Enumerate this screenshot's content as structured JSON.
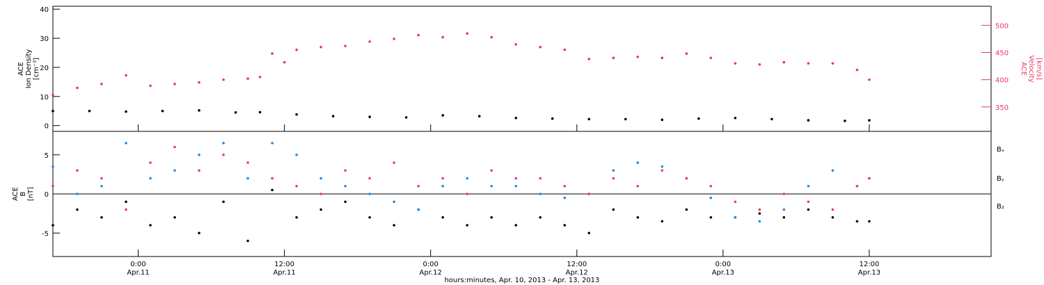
{
  "colors": {
    "black": "#000000",
    "blue": "#1e88e5",
    "red": "#e8385c"
  },
  "xaxis": {
    "label": "hours:minutes, Apr. 10, 2013 - Apr. 13, 2013",
    "ticks": [
      {
        "time": "2013-04-11T00:00",
        "line1": "0:00",
        "line2": "Apr.11"
      },
      {
        "time": "2013-04-11T12:00",
        "line1": "12:00",
        "line2": "Apr.11"
      },
      {
        "time": "2013-04-12T00:00",
        "line1": "0:00",
        "line2": "Apr.12"
      },
      {
        "time": "2013-04-12T12:00",
        "line1": "12:00",
        "line2": "Apr.12"
      },
      {
        "time": "2013-04-13T00:00",
        "line1": "0:00",
        "line2": "Apr.13"
      },
      {
        "time": "2013-04-13T12:00",
        "line1": "12:00",
        "line2": "Apr.13"
      }
    ]
  },
  "chart_data": [
    {
      "type": "scatter",
      "xlim": [
        "2013-04-10T17:00",
        "2013-04-13T22:00"
      ],
      "ylabel_left": [
        "ACE",
        "Ion Density",
        "[cm⁻³]"
      ],
      "ylim_left": [
        -2,
        41
      ],
      "yticks_left": [
        0,
        10,
        20,
        30,
        40
      ],
      "ylabel_right": [
        "ACE",
        "Velocity",
        "[km/s]"
      ],
      "ylim_right": [
        305,
        535
      ],
      "yticks_right": [
        350,
        400,
        450,
        500
      ],
      "series": [
        {
          "axis": "left",
          "color": "#000000",
          "x": [
            "2013-04-10T17:00",
            "2013-04-10T20:00",
            "2013-04-10T23:00",
            "2013-04-11T02:00",
            "2013-04-11T05:00",
            "2013-04-11T08:00",
            "2013-04-11T10:00",
            "2013-04-11T13:00",
            "2013-04-11T16:00",
            "2013-04-11T19:00",
            "2013-04-11T22:00",
            "2013-04-12T01:00",
            "2013-04-12T04:00",
            "2013-04-12T07:00",
            "2013-04-12T10:00",
            "2013-04-12T13:00",
            "2013-04-12T16:00",
            "2013-04-12T19:00",
            "2013-04-12T22:00",
            "2013-04-13T01:00",
            "2013-04-13T04:00",
            "2013-04-13T07:00",
            "2013-04-13T10:00",
            "2013-04-13T12:00"
          ],
          "y": [
            5,
            5,
            4.8,
            5,
            5.2,
            4.5,
            4.6,
            3.8,
            3.2,
            3.0,
            2.8,
            3.5,
            3.2,
            2.6,
            2.4,
            2.2,
            2.2,
            2.0,
            2.4,
            2.6,
            2.2,
            1.8,
            1.6,
            1.8
          ]
        },
        {
          "axis": "right",
          "color": "#e8385c",
          "x": [
            "2013-04-10T17:00",
            "2013-04-10T19:00",
            "2013-04-10T21:00",
            "2013-04-10T23:00",
            "2013-04-11T01:00",
            "2013-04-11T03:00",
            "2013-04-11T05:00",
            "2013-04-11T07:00",
            "2013-04-11T09:00",
            "2013-04-11T10:00",
            "2013-04-11T11:00",
            "2013-04-11T12:00",
            "2013-04-11T13:00",
            "2013-04-11T15:00",
            "2013-04-11T17:00",
            "2013-04-11T19:00",
            "2013-04-11T21:00",
            "2013-04-11T23:00",
            "2013-04-12T01:00",
            "2013-04-12T03:00",
            "2013-04-12T05:00",
            "2013-04-12T07:00",
            "2013-04-12T09:00",
            "2013-04-12T11:00",
            "2013-04-12T13:00",
            "2013-04-12T15:00",
            "2013-04-12T17:00",
            "2013-04-12T19:00",
            "2013-04-12T21:00",
            "2013-04-12T23:00",
            "2013-04-13T01:00",
            "2013-04-13T03:00",
            "2013-04-13T05:00",
            "2013-04-13T07:00",
            "2013-04-13T09:00",
            "2013-04-13T11:00",
            "2013-04-13T12:00"
          ],
          "y": [
            372,
            385,
            392,
            408,
            389,
            392,
            395,
            400,
            402,
            405,
            448,
            432,
            455,
            460,
            462,
            470,
            475,
            482,
            478,
            485,
            478,
            465,
            460,
            455,
            438,
            440,
            442,
            440,
            448,
            440,
            430,
            428,
            432,
            430,
            430,
            418,
            400
          ]
        }
      ]
    },
    {
      "type": "scatter",
      "xlim": [
        "2013-04-10T17:00",
        "2013-04-13T22:00"
      ],
      "ylabel_left": [
        "ACE",
        "B",
        "[nT]"
      ],
      "ylim_left": [
        -8,
        8
      ],
      "yticks_left": [
        -5,
        0,
        5
      ],
      "zero_line": true,
      "legend": [
        "Bₓ",
        "Bᵧ",
        "B₂"
      ],
      "legend_placement": "right",
      "series": [
        {
          "name": "Bₓ",
          "color": "#000000",
          "x": [
            "2013-04-10T17:00",
            "2013-04-10T19:00",
            "2013-04-10T21:00",
            "2013-04-10T23:00",
            "2013-04-11T01:00",
            "2013-04-11T03:00",
            "2013-04-11T05:00",
            "2013-04-11T07:00",
            "2013-04-11T09:00",
            "2013-04-11T11:00",
            "2013-04-11T13:00",
            "2013-04-11T15:00",
            "2013-04-11T17:00",
            "2013-04-11T19:00",
            "2013-04-11T21:00",
            "2013-04-11T23:00",
            "2013-04-12T01:00",
            "2013-04-12T03:00",
            "2013-04-12T05:00",
            "2013-04-12T07:00",
            "2013-04-12T09:00",
            "2013-04-12T11:00",
            "2013-04-12T13:00",
            "2013-04-12T15:00",
            "2013-04-12T17:00",
            "2013-04-12T19:00",
            "2013-04-12T21:00",
            "2013-04-12T23:00",
            "2013-04-13T01:00",
            "2013-04-13T03:00",
            "2013-04-13T05:00",
            "2013-04-13T07:00",
            "2013-04-13T09:00",
            "2013-04-13T11:00",
            "2013-04-13T12:00"
          ],
          "y": [
            -4,
            -2,
            -3,
            -1,
            -4,
            -3,
            -5,
            -1,
            -6,
            0.5,
            -3,
            -2,
            -1,
            -3,
            -4,
            -2,
            -3,
            -4,
            -3,
            -4,
            -3,
            -4,
            -5,
            -2,
            -3,
            -3.5,
            -2,
            -3,
            -3,
            -2.5,
            -3,
            -2,
            -3,
            -3.5,
            -3.5
          ]
        },
        {
          "name": "Bᵧ",
          "color": "#1e88e5",
          "x": [
            "2013-04-10T17:00",
            "2013-04-10T19:00",
            "2013-04-10T21:00",
            "2013-04-10T23:00",
            "2013-04-11T01:00",
            "2013-04-11T03:00",
            "2013-04-11T05:00",
            "2013-04-11T07:00",
            "2013-04-11T09:00",
            "2013-04-11T11:00",
            "2013-04-11T13:00",
            "2013-04-11T15:00",
            "2013-04-11T17:00",
            "2013-04-11T19:00",
            "2013-04-11T21:00",
            "2013-04-11T23:00",
            "2013-04-12T01:00",
            "2013-04-12T03:00",
            "2013-04-12T05:00",
            "2013-04-12T07:00",
            "2013-04-12T09:00",
            "2013-04-12T11:00",
            "2013-04-12T13:00",
            "2013-04-12T15:00",
            "2013-04-12T17:00",
            "2013-04-12T19:00",
            "2013-04-12T21:00",
            "2013-04-12T23:00",
            "2013-04-13T01:00",
            "2013-04-13T03:00",
            "2013-04-13T05:00",
            "2013-04-13T07:00",
            "2013-04-13T09:00",
            "2013-04-13T11:00",
            "2013-04-13T12:00"
          ],
          "y": [
            3.5,
            0,
            1,
            6.5,
            2,
            3,
            5,
            6.5,
            2,
            6.5,
            5,
            2,
            1,
            0,
            -1,
            -2,
            1,
            2,
            1,
            1,
            0,
            -0.5,
            0,
            3,
            4,
            3.5,
            2,
            -0.5,
            -3,
            -3.5,
            -2,
            1,
            3,
            1,
            2
          ]
        },
        {
          "name": "B₂",
          "color": "#e8385c",
          "x": [
            "2013-04-10T17:00",
            "2013-04-10T19:00",
            "2013-04-10T21:00",
            "2013-04-10T23:00",
            "2013-04-11T01:00",
            "2013-04-11T03:00",
            "2013-04-11T05:00",
            "2013-04-11T07:00",
            "2013-04-11T09:00",
            "2013-04-11T11:00",
            "2013-04-11T13:00",
            "2013-04-11T15:00",
            "2013-04-11T17:00",
            "2013-04-11T19:00",
            "2013-04-11T21:00",
            "2013-04-11T23:00",
            "2013-04-12T01:00",
            "2013-04-12T03:00",
            "2013-04-12T05:00",
            "2013-04-12T07:00",
            "2013-04-12T09:00",
            "2013-04-12T11:00",
            "2013-04-12T13:00",
            "2013-04-12T15:00",
            "2013-04-12T17:00",
            "2013-04-12T19:00",
            "2013-04-12T21:00",
            "2013-04-12T23:00",
            "2013-04-13T01:00",
            "2013-04-13T03:00",
            "2013-04-13T05:00",
            "2013-04-13T07:00",
            "2013-04-13T09:00",
            "2013-04-13T11:00",
            "2013-04-13T12:00"
          ],
          "y": [
            1,
            3,
            2,
            -2,
            4,
            6,
            3,
            5,
            4,
            2,
            1,
            0,
            3,
            2,
            4,
            1,
            2,
            0,
            3,
            2,
            2,
            1,
            0,
            2,
            1,
            3,
            2,
            1,
            -1,
            -2,
            0,
            -1,
            -2,
            1,
            2
          ]
        }
      ]
    }
  ]
}
